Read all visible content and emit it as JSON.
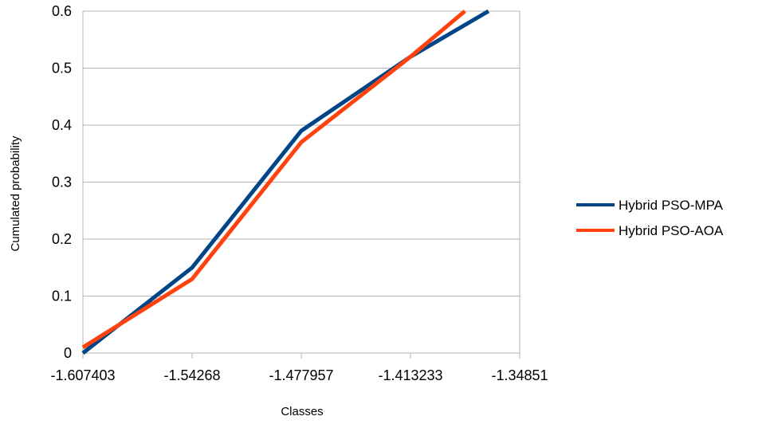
{
  "chart_data": {
    "type": "line",
    "title": "",
    "xlabel": "Classes",
    "ylabel": "Cumulated probability",
    "x_tick_labels": [
      "-1.607403",
      "-1.54268",
      "-1.477957",
      "-1.413233",
      "-1.34851"
    ],
    "y_tick_labels": [
      "0",
      "0.1",
      "0.2",
      "0.3",
      "0.4",
      "0.5",
      "0.6"
    ],
    "ylim": [
      0,
      0.6
    ],
    "xlim": [
      -1.607403,
      -1.34851
    ],
    "grid": "horizontal",
    "legend_position": "right",
    "series": [
      {
        "name": "Hybrid PSO-MPA",
        "color": "#004586",
        "x": [
          -1.607403,
          -1.54268,
          -1.477957,
          -1.413233,
          -1.367
        ],
        "y": [
          0.0,
          0.15,
          0.39,
          0.52,
          0.6
        ]
      },
      {
        "name": "Hybrid PSO-AOA",
        "color": "#ff420e",
        "x": [
          -1.607403,
          -1.54268,
          -1.477957,
          -1.413233,
          -1.381
        ],
        "y": [
          0.01,
          0.13,
          0.37,
          0.52,
          0.6
        ]
      }
    ]
  }
}
